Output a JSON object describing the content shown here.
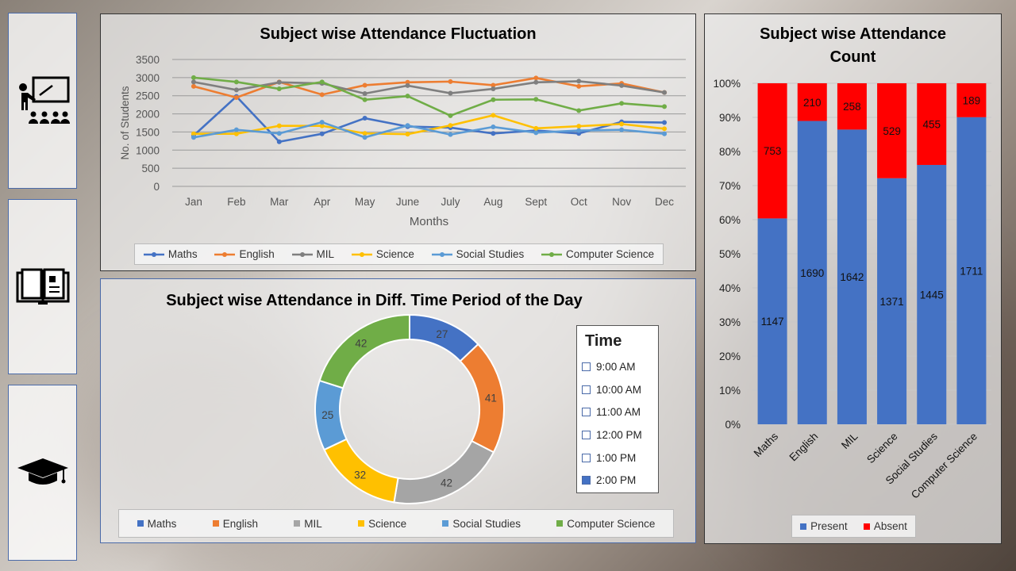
{
  "line_chart": {
    "chart_data": {
      "type": "line",
      "title": "Subject wise Attendance Fluctuation",
      "xlabel": "Months",
      "ylabel": "No. of Students",
      "categories": [
        "Jan",
        "Feb",
        "Mar",
        "Apr",
        "May",
        "June",
        "July",
        "Aug",
        "Sept",
        "Oct",
        "Nov",
        "Dec"
      ],
      "ylim": [
        0,
        3500
      ],
      "yticks": [
        0,
        500,
        1000,
        1500,
        2000,
        2500,
        3000,
        3500
      ],
      "grid": true,
      "legend_position": "bottom",
      "series": [
        {
          "name": "Maths",
          "color": "#4472c4",
          "values": [
            1400,
            2480,
            1230,
            1450,
            1880,
            1650,
            1620,
            1460,
            1540,
            1460,
            1780,
            1760
          ]
        },
        {
          "name": "English",
          "color": "#ed7d31",
          "values": [
            2760,
            2450,
            2880,
            2530,
            2790,
            2870,
            2890,
            2790,
            2990,
            2760,
            2840,
            2590
          ]
        },
        {
          "name": "MIL",
          "color": "#7f7f7f",
          "values": [
            2880,
            2660,
            2870,
            2840,
            2560,
            2780,
            2570,
            2690,
            2870,
            2900,
            2780,
            2590
          ]
        },
        {
          "name": "Science",
          "color": "#ffc000",
          "values": [
            1450,
            1450,
            1670,
            1670,
            1460,
            1440,
            1680,
            1960,
            1600,
            1660,
            1720,
            1590
          ]
        },
        {
          "name": "Social Studies",
          "color": "#5b9bd5",
          "values": [
            1350,
            1560,
            1460,
            1770,
            1350,
            1680,
            1430,
            1640,
            1480,
            1540,
            1560,
            1450
          ]
        },
        {
          "name": "Computer Science",
          "color": "#70ad47",
          "values": [
            3000,
            2880,
            2690,
            2880,
            2390,
            2490,
            1950,
            2390,
            2400,
            2090,
            2290,
            2200
          ]
        }
      ]
    }
  },
  "donut_chart": {
    "chart_data": {
      "type": "pie",
      "title": "Subject wise Attendance in Diff. Time Period of the Day",
      "categories": [
        "Maths",
        "English",
        "MIL",
        "Science",
        "Social Studies",
        "Computer Science"
      ],
      "values": [
        27,
        41,
        42,
        32,
        25,
        42
      ],
      "colors": [
        "#4472c4",
        "#ed7d31",
        "#a5a5a5",
        "#ffc000",
        "#5b9bd5",
        "#70ad47"
      ],
      "legend_position": "bottom"
    }
  },
  "bar_chart": {
    "chart_data": {
      "type": "bar",
      "stacked": "percent",
      "title_line1": "Subject wise Attendance",
      "title_line2": "Count",
      "categories": [
        "Maths",
        "English",
        "MIL",
        "Science",
        "Social Studies",
        "Computer Science"
      ],
      "ylim": [
        0,
        100
      ],
      "yticks": [
        "0%",
        "10%",
        "20%",
        "30%",
        "40%",
        "50%",
        "60%",
        "70%",
        "80%",
        "90%",
        "100%"
      ],
      "legend_position": "bottom",
      "series": [
        {
          "name": "Present",
          "color": "#4472c4",
          "values": [
            1147,
            1690,
            1642,
            1371,
            1445,
            1711
          ]
        },
        {
          "name": "Absent",
          "color": "#ff0000",
          "values": [
            753,
            210,
            258,
            529,
            455,
            189
          ]
        }
      ]
    }
  },
  "slicer": {
    "title": "Time",
    "options": [
      {
        "label": "9:00 AM",
        "selected": false
      },
      {
        "label": "10:00 AM",
        "selected": false
      },
      {
        "label": "11:00 AM",
        "selected": false
      },
      {
        "label": "12:00 PM",
        "selected": false
      },
      {
        "label": "1:00 PM",
        "selected": false
      },
      {
        "label": "2:00 PM",
        "selected": true
      }
    ]
  },
  "sidebar": {
    "icons": [
      "teacher-classroom-icon",
      "book-icon",
      "graduation-cap-icon"
    ]
  }
}
